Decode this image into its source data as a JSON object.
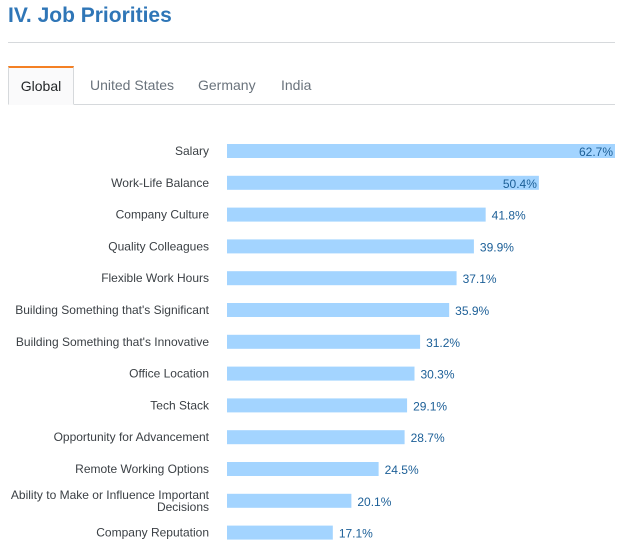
{
  "section": {
    "title": "IV. Job Priorities"
  },
  "tabs": [
    {
      "label": "Global",
      "active": true
    },
    {
      "label": "United States",
      "active": false
    },
    {
      "label": "Germany",
      "active": false
    },
    {
      "label": "India",
      "active": false
    }
  ],
  "colors": {
    "bar": "#a3d4ff",
    "accent": "#f48024",
    "title": "#2f76b7",
    "value_text": "#1c5f97"
  },
  "chart_data": {
    "type": "bar",
    "orientation": "horizontal",
    "categories": [
      "Salary",
      "Work-Life Balance",
      "Company Culture",
      "Quality Colleagues",
      "Flexible Work Hours",
      "Building Something that's Significant",
      "Building Something that's Innovative",
      "Office Location",
      "Tech Stack",
      "Opportunity for Advancement",
      "Remote Working Options",
      "Ability to Make or Influence Important Decisions",
      "Company Reputation"
    ],
    "values": [
      62.7,
      50.4,
      41.8,
      39.9,
      37.1,
      35.9,
      31.2,
      30.3,
      29.1,
      28.7,
      24.5,
      20.1,
      17.1
    ],
    "value_labels": [
      "62.7%",
      "50.4%",
      "41.8%",
      "39.9%",
      "37.1%",
      "35.9%",
      "31.2%",
      "30.3%",
      "29.1%",
      "28.7%",
      "24.5%",
      "20.1%",
      "17.1%"
    ],
    "xlim": [
      0,
      62.7
    ],
    "grid": false,
    "legend": "none"
  }
}
